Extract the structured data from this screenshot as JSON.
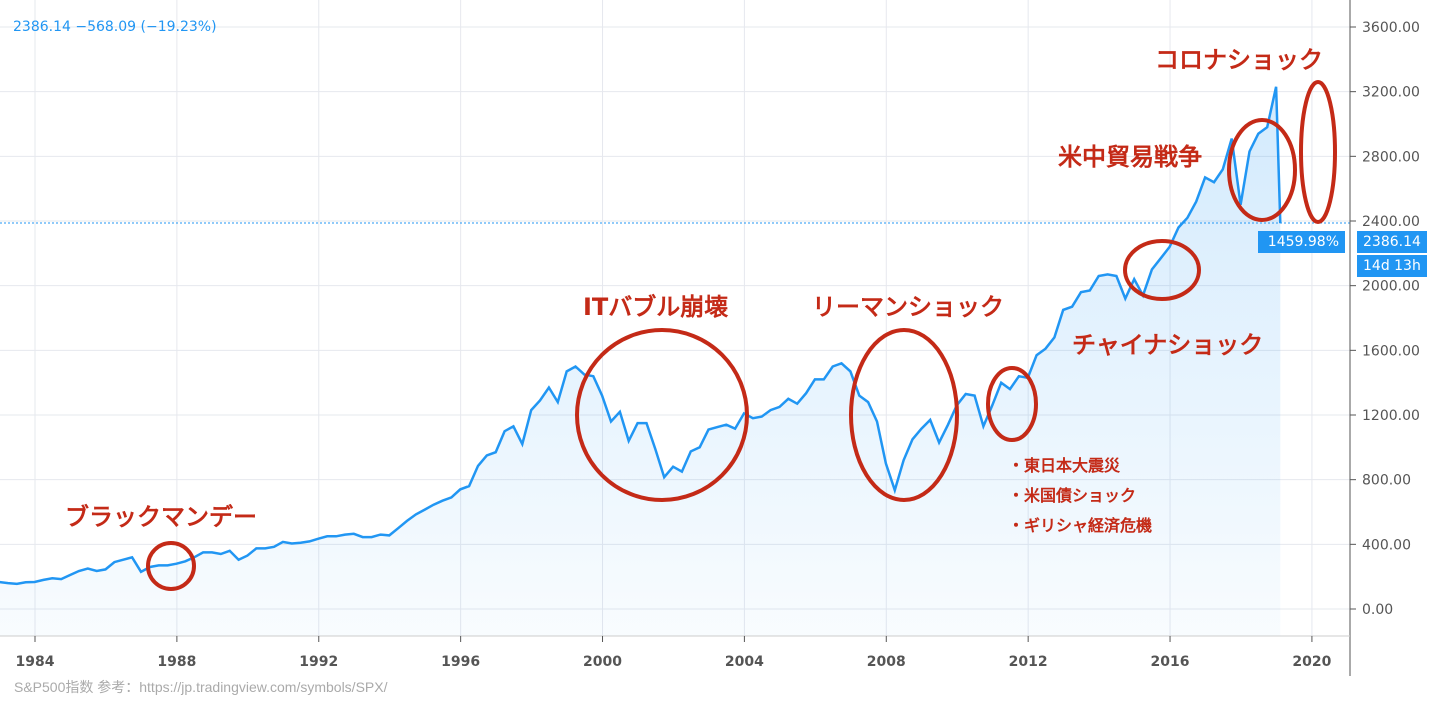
{
  "header": {
    "legend_text": "2386.14 −568.09 (−19.23%)"
  },
  "price_tag": "2386.14",
  "percent_tag": "1459.98%",
  "countdown_tag": "14d 13h",
  "caption": "S&P500指数 参考：https://jp.tradingview.com/symbols/SPX/",
  "colors": {
    "line": "#2196f3",
    "annotation": "#c42a17",
    "grid": "#e6e8ee"
  },
  "annotations": {
    "black_monday": "ブラックマンデー",
    "it_bubble": "ITバブル崩壊",
    "lehman": "リーマンショック",
    "china": "チャイナショック",
    "trade_war": "米中貿易戦争",
    "corona": "コロナショック",
    "bullets": [
      "・東日本大震災",
      "・米国債ショック",
      "・ギリシャ経済危機"
    ]
  },
  "chart_data": {
    "type": "area",
    "title": "S&P500",
    "xlabel": "",
    "ylabel": "",
    "xlim": [
      1983.2,
      2021.1
    ],
    "ylim": [
      -180,
      3720
    ],
    "x_ticks": [
      "1984",
      "1988",
      "1992",
      "1996",
      "2000",
      "2004",
      "2008",
      "2012",
      "2016",
      "2020"
    ],
    "y_ticks": [
      "0.00",
      "400.00",
      "800.00",
      "1200.00",
      "1600.00",
      "2000.00",
      "2400.00",
      "2800.00",
      "3200.00",
      "3600.00"
    ],
    "start_year": 1983.25,
    "step_years": 0.25,
    "values": [
      160,
      165,
      167,
      160,
      155,
      165,
      167,
      180,
      190,
      185,
      210,
      235,
      250,
      235,
      245,
      290,
      305,
      320,
      230,
      260,
      270,
      270,
      280,
      295,
      320,
      350,
      350,
      340,
      360,
      305,
      330,
      375,
      375,
      385,
      415,
      405,
      410,
      418,
      435,
      450,
      450,
      460,
      465,
      445,
      445,
      460,
      455,
      500,
      545,
      585,
      615,
      645,
      670,
      690,
      740,
      760,
      885,
      950,
      970,
      1100,
      1130,
      1020,
      1230,
      1290,
      1370,
      1280,
      1470,
      1500,
      1450,
      1440,
      1320,
      1160,
      1220,
      1040,
      1150,
      1150,
      990,
      815,
      880,
      850,
      975,
      1000,
      1110,
      1125,
      1140,
      1115,
      1210,
      1180,
      1190,
      1230,
      1250,
      1300,
      1270,
      1335,
      1420,
      1420,
      1500,
      1520,
      1470,
      1320,
      1280,
      1160,
      900,
      735,
      920,
      1050,
      1115,
      1170,
      1030,
      1140,
      1260,
      1330,
      1320,
      1130,
      1260,
      1400,
      1360,
      1440,
      1430,
      1570,
      1610,
      1680,
      1850,
      1870,
      1960,
      1970,
      2060,
      2070,
      2060,
      1920,
      2040,
      1940,
      2100,
      2170,
      2240,
      2360,
      2420,
      2520,
      2670,
      2640,
      2720,
      2910,
      2500,
      2830,
      2940,
      2980,
      3230,
      2386.14
    ],
    "last_value": 2386.14
  }
}
